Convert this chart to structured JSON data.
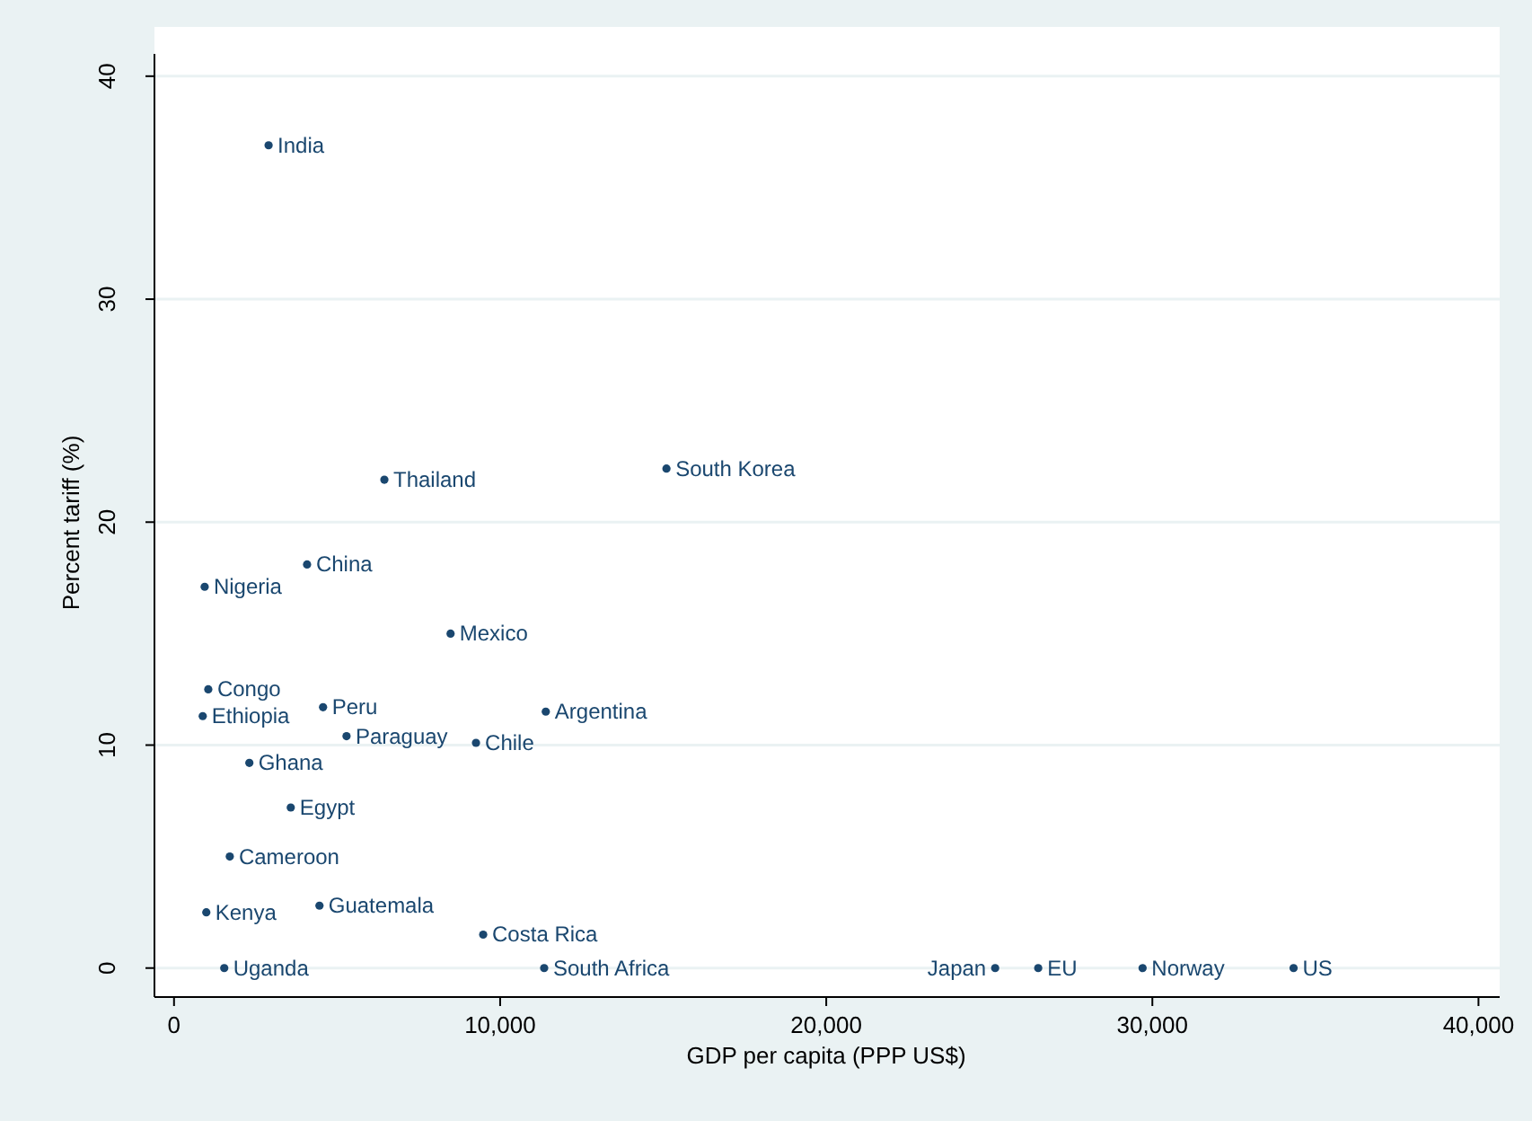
{
  "chart_data": {
    "type": "scatter",
    "xlabel": "GDP per capita (PPP US$)",
    "ylabel": "Percent tariff (%)",
    "xlim": [
      -600,
      40650
    ],
    "ylim": [
      -1.3,
      41
    ],
    "xticks": [
      {
        "value": 0,
        "label": "0"
      },
      {
        "value": 10000,
        "label": "10,000"
      },
      {
        "value": 20000,
        "label": "20,000"
      },
      {
        "value": 30000,
        "label": "30,000"
      },
      {
        "value": 40000,
        "label": "40,000"
      }
    ],
    "yticks": [
      0,
      10,
      20,
      30,
      40
    ],
    "grid": "y",
    "marker": "circle",
    "legend": false,
    "series": [
      {
        "name": "India",
        "color": "#1a476f",
        "x": [
          2900
        ],
        "values": [
          36.9
        ]
      },
      {
        "name": "Thailand",
        "color": "#1a476f",
        "x": [
          6450
        ],
        "values": [
          21.9
        ]
      },
      {
        "name": "South Korea",
        "color": "#1a476f",
        "x": [
          15100
        ],
        "values": [
          22.4
        ]
      },
      {
        "name": "China",
        "color": "#1a476f",
        "x": [
          4080
        ],
        "values": [
          18.1
        ]
      },
      {
        "name": "Nigeria",
        "color": "#1a476f",
        "x": [
          940
        ],
        "values": [
          17.1
        ]
      },
      {
        "name": "Mexico",
        "color": "#1a476f",
        "x": [
          8480
        ],
        "values": [
          15.0
        ]
      },
      {
        "name": "Congo",
        "color": "#1a476f",
        "x": [
          1050
        ],
        "values": [
          12.5
        ]
      },
      {
        "name": "Peru",
        "color": "#1a476f",
        "x": [
          4570
        ],
        "values": [
          11.7
        ]
      },
      {
        "name": "Argentina",
        "color": "#1a476f",
        "x": [
          11400
        ],
        "values": [
          11.5
        ]
      },
      {
        "name": "Ethiopia",
        "color": "#1a476f",
        "x": [
          880
        ],
        "values": [
          11.3
        ]
      },
      {
        "name": "Paraguay",
        "color": "#1a476f",
        "x": [
          5290
        ],
        "values": [
          10.4
        ]
      },
      {
        "name": "Chile",
        "color": "#1a476f",
        "x": [
          9260
        ],
        "values": [
          10.1
        ]
      },
      {
        "name": "Ghana",
        "color": "#1a476f",
        "x": [
          2310
        ],
        "values": [
          9.2
        ]
      },
      {
        "name": "Egypt",
        "color": "#1a476f",
        "x": [
          3580
        ],
        "values": [
          7.2
        ]
      },
      {
        "name": "Cameroon",
        "color": "#1a476f",
        "x": [
          1710
        ],
        "values": [
          5.0
        ]
      },
      {
        "name": "Kenya",
        "color": "#1a476f",
        "x": [
          990
        ],
        "values": [
          2.5
        ]
      },
      {
        "name": "Guatemala",
        "color": "#1a476f",
        "x": [
          4460
        ],
        "values": [
          2.8
        ]
      },
      {
        "name": "Costa Rica",
        "color": "#1a476f",
        "x": [
          9480
        ],
        "values": [
          1.5
        ]
      },
      {
        "name": "Uganda",
        "color": "#1a476f",
        "x": [
          1540
        ],
        "values": [
          0
        ]
      },
      {
        "name": "South Africa",
        "color": "#1a476f",
        "x": [
          11350
        ],
        "values": [
          0
        ]
      },
      {
        "name": "Japan",
        "color": "#1a476f",
        "x": [
          25180
        ],
        "values": [
          0
        ]
      },
      {
        "name": "EU",
        "color": "#1a476f",
        "x": [
          26500
        ],
        "values": [
          0
        ]
      },
      {
        "name": "Norway",
        "color": "#1a476f",
        "x": [
          29700
        ],
        "values": [
          0
        ]
      },
      {
        "name": "US",
        "color": "#1a476f",
        "x": [
          34330
        ],
        "values": [
          0
        ]
      }
    ]
  }
}
